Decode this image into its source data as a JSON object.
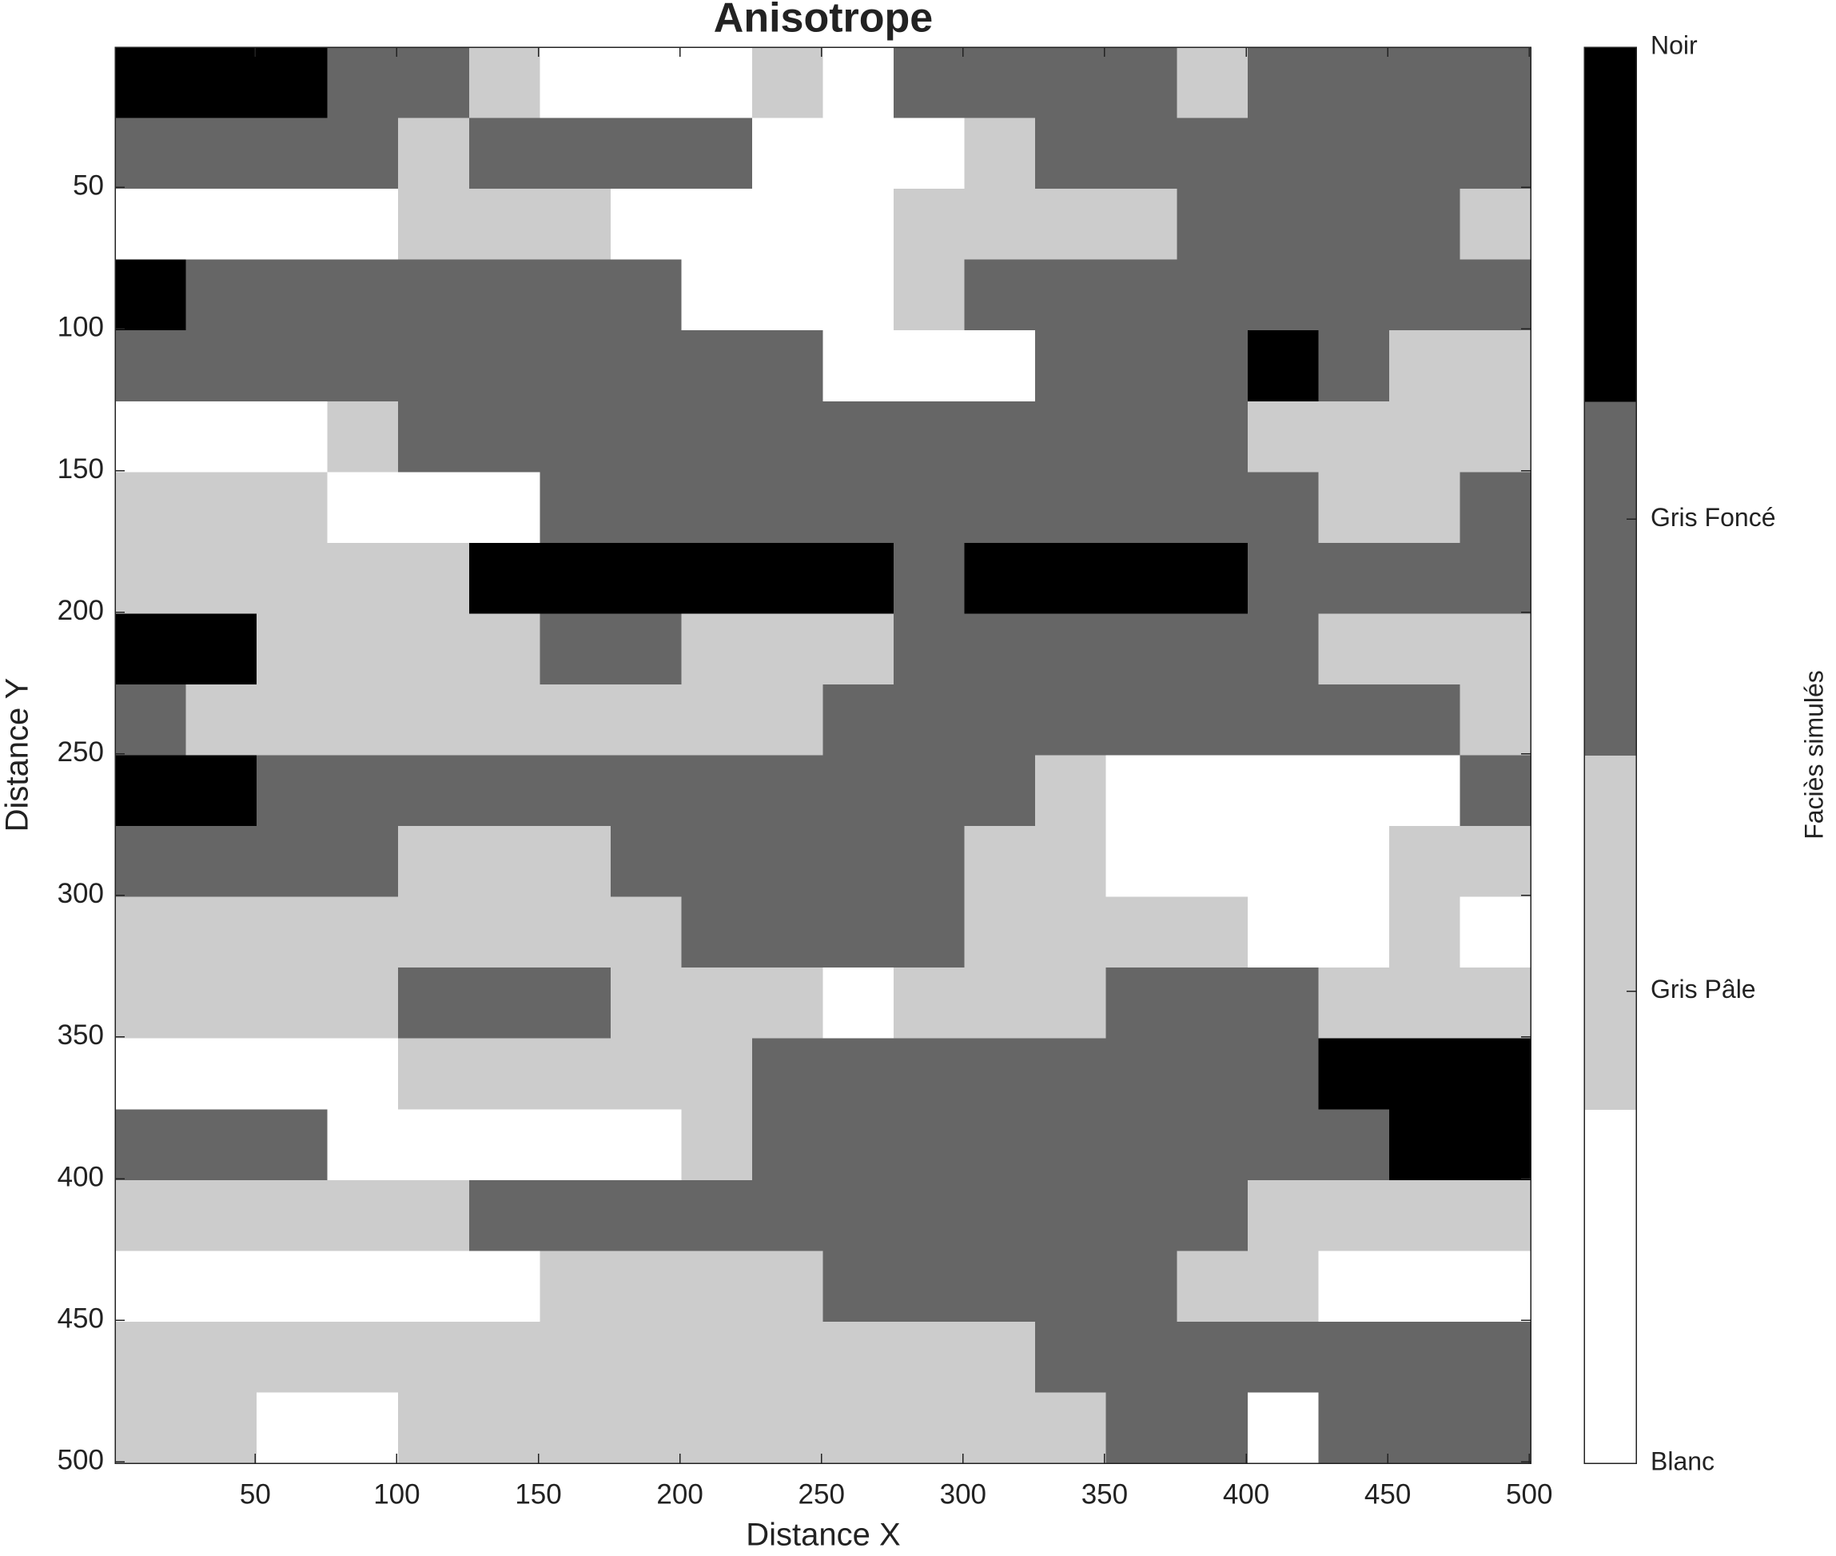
{
  "chart_data": {
    "type": "heatmap",
    "title": "Anisotrope",
    "xlabel": "Distance X",
    "ylabel": "Distance Y",
    "xlim": [
      0.5,
      500.5
    ],
    "ylim": [
      0.5,
      500.5
    ],
    "y_reversed": true,
    "xticks": [
      50,
      100,
      150,
      200,
      250,
      300,
      350,
      400,
      450,
      500
    ],
    "yticks": [
      50,
      100,
      150,
      200,
      250,
      300,
      350,
      400,
      450,
      500
    ],
    "z": [
      [
        4,
        4,
        4,
        3,
        3,
        2,
        1,
        1,
        1,
        2,
        1,
        3,
        3,
        3,
        3,
        2,
        3,
        3,
        3,
        3
      ],
      [
        3,
        3,
        3,
        3,
        2,
        3,
        3,
        3,
        3,
        1,
        1,
        1,
        2,
        3,
        3,
        3,
        3,
        3,
        3,
        3
      ],
      [
        1,
        1,
        1,
        1,
        2,
        2,
        2,
        1,
        1,
        1,
        1,
        2,
        2,
        2,
        2,
        3,
        3,
        3,
        3,
        2
      ],
      [
        4,
        3,
        3,
        3,
        3,
        3,
        3,
        3,
        1,
        1,
        1,
        2,
        3,
        3,
        3,
        3,
        3,
        3,
        3,
        3
      ],
      [
        3,
        3,
        3,
        3,
        3,
        3,
        3,
        3,
        3,
        3,
        1,
        1,
        1,
        3,
        3,
        3,
        4,
        3,
        2,
        2
      ],
      [
        1,
        1,
        1,
        2,
        3,
        3,
        3,
        3,
        3,
        3,
        3,
        3,
        3,
        3,
        3,
        3,
        2,
        2,
        2,
        2
      ],
      [
        2,
        2,
        2,
        1,
        1,
        1,
        3,
        3,
        3,
        3,
        3,
        3,
        3,
        3,
        3,
        3,
        3,
        2,
        2,
        3
      ],
      [
        2,
        2,
        2,
        2,
        2,
        4,
        4,
        4,
        4,
        4,
        4,
        3,
        4,
        4,
        4,
        4,
        3,
        3,
        3,
        3
      ],
      [
        4,
        4,
        2,
        2,
        2,
        2,
        3,
        3,
        2,
        2,
        2,
        3,
        3,
        3,
        3,
        3,
        3,
        2,
        2,
        2
      ],
      [
        3,
        2,
        2,
        2,
        2,
        2,
        2,
        2,
        2,
        2,
        3,
        3,
        3,
        3,
        3,
        3,
        3,
        3,
        3,
        2
      ],
      [
        4,
        4,
        3,
        3,
        3,
        3,
        3,
        3,
        3,
        3,
        3,
        3,
        3,
        2,
        1,
        1,
        1,
        1,
        1,
        3
      ],
      [
        3,
        3,
        3,
        3,
        2,
        2,
        2,
        3,
        3,
        3,
        3,
        3,
        2,
        2,
        1,
        1,
        1,
        1,
        2,
        2
      ],
      [
        2,
        2,
        2,
        2,
        2,
        2,
        2,
        2,
        3,
        3,
        3,
        3,
        2,
        2,
        2,
        2,
        1,
        1,
        2,
        1
      ],
      [
        2,
        2,
        2,
        2,
        3,
        3,
        3,
        2,
        2,
        2,
        1,
        2,
        2,
        2,
        3,
        3,
        3,
        2,
        2,
        2
      ],
      [
        1,
        1,
        1,
        1,
        2,
        2,
        2,
        2,
        2,
        3,
        3,
        3,
        3,
        3,
        3,
        3,
        3,
        4,
        4,
        4
      ],
      [
        3,
        3,
        3,
        1,
        1,
        1,
        1,
        1,
        2,
        3,
        3,
        3,
        3,
        3,
        3,
        3,
        3,
        3,
        4,
        4
      ],
      [
        2,
        2,
        2,
        2,
        2,
        3,
        3,
        3,
        3,
        3,
        3,
        3,
        3,
        3,
        3,
        3,
        2,
        2,
        2,
        2
      ],
      [
        1,
        1,
        1,
        1,
        1,
        1,
        2,
        2,
        2,
        2,
        3,
        3,
        3,
        3,
        3,
        2,
        2,
        1,
        1,
        1
      ],
      [
        2,
        2,
        2,
        2,
        2,
        2,
        2,
        2,
        2,
        2,
        2,
        2,
        2,
        3,
        3,
        3,
        3,
        3,
        3,
        3
      ],
      [
        2,
        2,
        1,
        1,
        2,
        2,
        2,
        2,
        2,
        2,
        2,
        2,
        2,
        2,
        3,
        3,
        1,
        3,
        3,
        3
      ]
    ],
    "colorbar": {
      "label": "Faciès simulés",
      "lim": [
        1,
        4
      ],
      "colors": [
        "#ffffff",
        "#cccccc",
        "#666666",
        "#000000"
      ],
      "ticks": [
        {
          "value": 1,
          "label": "Blanc"
        },
        {
          "value": 2,
          "label": "Gris Pâle"
        },
        {
          "value": 3,
          "label": "Gris Foncé"
        },
        {
          "value": 4,
          "label": "Noir"
        }
      ]
    }
  }
}
